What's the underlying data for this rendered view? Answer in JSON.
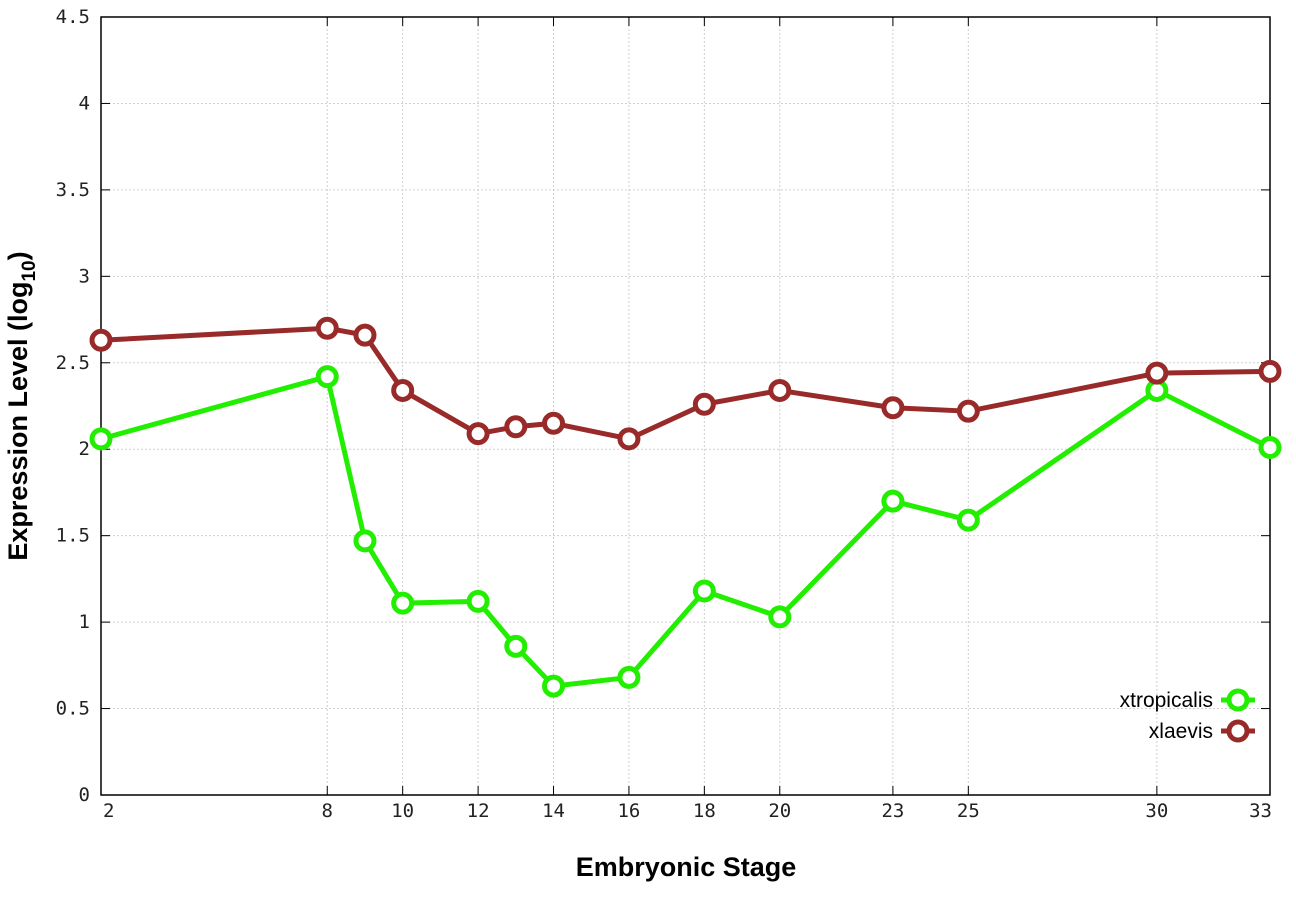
{
  "chart_data": {
    "type": "line",
    "xlabel": "Embryonic Stage",
    "ylabel": "Expression Level (log",
    "ylabel_sub": "10",
    "ylabel_end": ")",
    "x_ticks": [
      2,
      8,
      10,
      12,
      14,
      16,
      18,
      20,
      23,
      25,
      30,
      33
    ],
    "x_tick_labels": [
      "2",
      "8",
      "10",
      "12",
      "14",
      "16",
      "18",
      "20",
      "23",
      "25",
      "30",
      "33"
    ],
    "y_ticks": [
      0,
      0.5,
      1,
      1.5,
      2,
      2.5,
      3,
      3.5,
      4,
      4.5
    ],
    "y_tick_labels": [
      "0",
      "0.5",
      "1",
      "1.5",
      "2",
      "2.5",
      "3",
      "3.5",
      "4",
      "4.5"
    ],
    "xlim": [
      2,
      33
    ],
    "ylim": [
      0,
      4.5
    ],
    "grid": true,
    "legend_position": "bottom-right",
    "series": [
      {
        "name": "xtropicalis",
        "color": "#22ee00",
        "x": [
          2,
          8,
          9,
          10,
          12,
          13,
          14,
          16,
          18,
          20,
          23,
          25,
          30,
          33
        ],
        "y": [
          2.06,
          2.42,
          1.47,
          1.11,
          1.12,
          0.86,
          0.63,
          0.68,
          1.18,
          1.03,
          1.7,
          1.59,
          2.34,
          2.01
        ]
      },
      {
        "name": "xlaevis",
        "color": "#992a2a",
        "x": [
          2,
          8,
          9,
          10,
          12,
          13,
          14,
          16,
          18,
          20,
          23,
          25,
          30,
          33
        ],
        "y": [
          2.63,
          2.7,
          2.66,
          2.34,
          2.09,
          2.13,
          2.15,
          2.06,
          2.26,
          2.34,
          2.24,
          2.22,
          2.44,
          2.45
        ]
      }
    ]
  }
}
